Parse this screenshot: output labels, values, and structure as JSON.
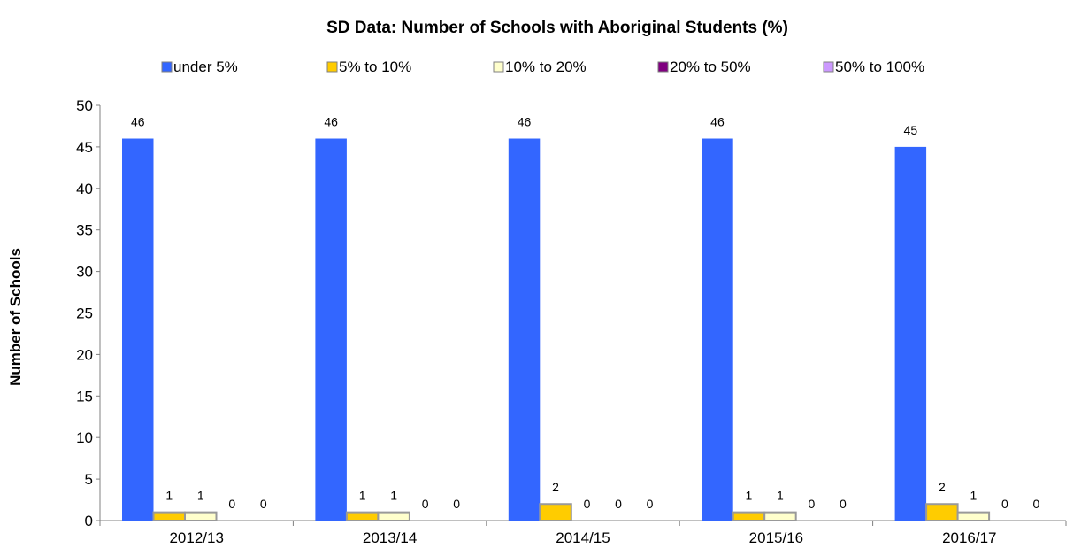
{
  "chart_data": {
    "type": "bar",
    "title": "SD Data: Number of Schools with Aboriginal Students (%)",
    "xlabel": "",
    "ylabel": "Number of Schools",
    "ylim": [
      0,
      50
    ],
    "yticks": [
      0,
      5,
      10,
      15,
      20,
      25,
      30,
      35,
      40,
      45,
      50
    ],
    "grid": false,
    "legend_position": "top",
    "categories": [
      "2012/13",
      "2013/14",
      "2014/15",
      "2015/16",
      "2016/17"
    ],
    "series": [
      {
        "name": "under 5%",
        "color": "#3366ff",
        "values": [
          46,
          46,
          46,
          46,
          45
        ]
      },
      {
        "name": "5% to 10%",
        "color": "#ffcc00",
        "values": [
          1,
          1,
          2,
          1,
          2
        ]
      },
      {
        "name": "10% to 20%",
        "color": "#ffffcc",
        "values": [
          1,
          1,
          0,
          1,
          1
        ]
      },
      {
        "name": "20% to 50%",
        "color": "#800080",
        "values": [
          0,
          0,
          0,
          0,
          0
        ]
      },
      {
        "name": "50% to 100%",
        "color": "#cc99ff",
        "values": [
          0,
          0,
          0,
          0,
          0
        ]
      }
    ]
  }
}
